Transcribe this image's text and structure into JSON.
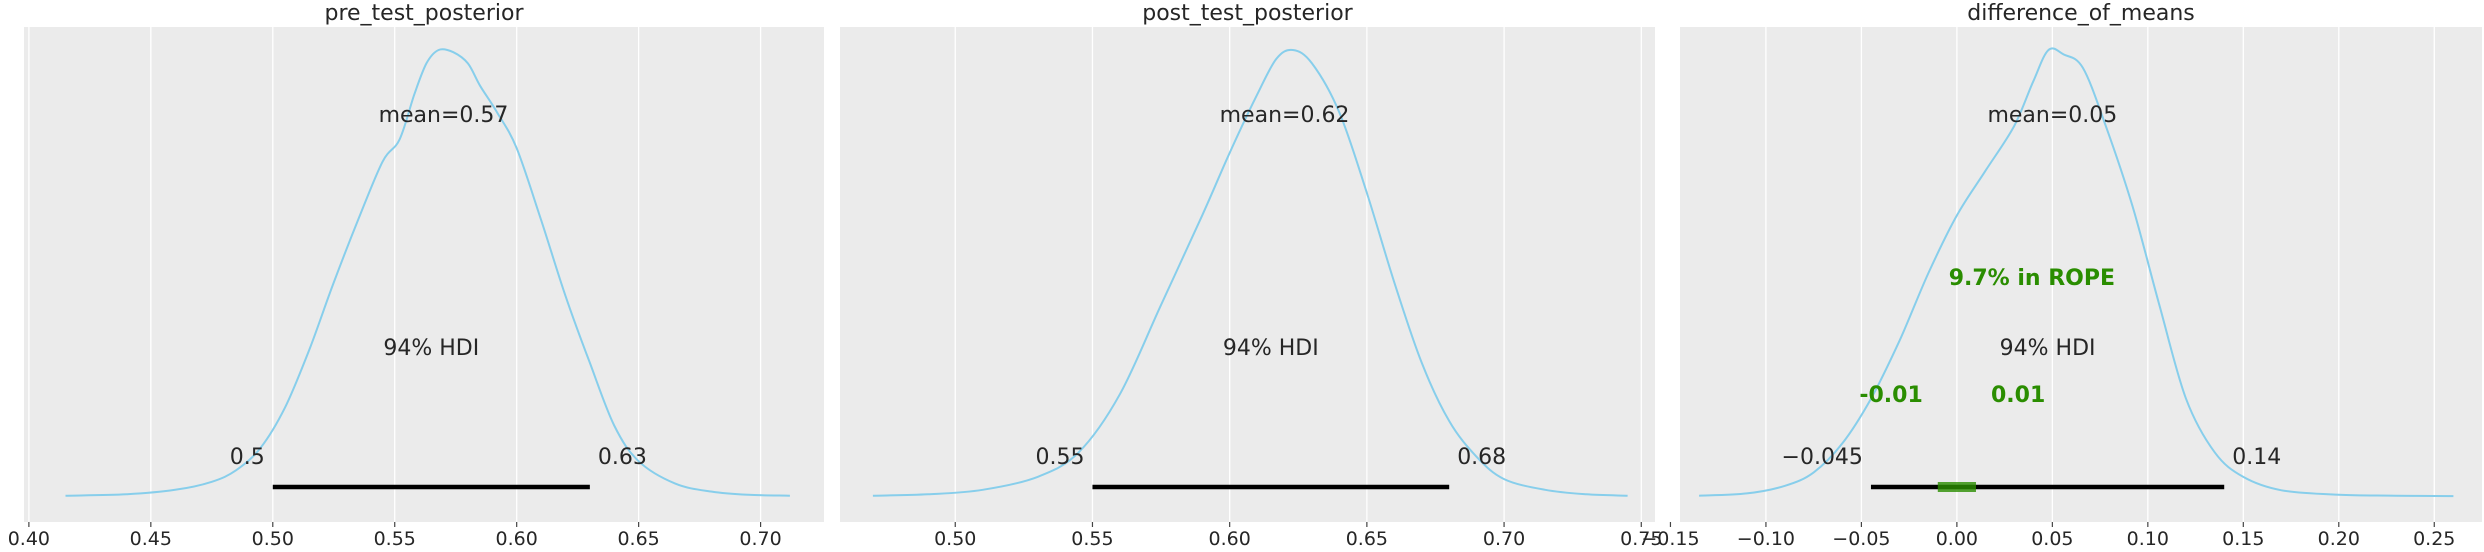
{
  "colors": {
    "panel_bg": "#ebebeb",
    "grid": "#ffffff",
    "density": "#87ceeb",
    "hdi_bar": "#000000",
    "rope": "#2a8d00"
  },
  "chart_data": [
    {
      "type": "area",
      "title": "pre_test_posterior",
      "xlim": [
        0.398,
        0.726
      ],
      "xticks": [
        0.4,
        0.45,
        0.5,
        0.55,
        0.6,
        0.65,
        0.7
      ],
      "xtick_labels": [
        "0.40",
        "0.45",
        "0.50",
        "0.55",
        "0.60",
        "0.65",
        "0.70"
      ],
      "grid": true,
      "density": {
        "x": [
          0.415,
          0.44,
          0.46,
          0.475,
          0.485,
          0.495,
          0.505,
          0.515,
          0.525,
          0.535,
          0.545,
          0.552,
          0.558,
          0.563,
          0.568,
          0.574,
          0.58,
          0.585,
          0.592,
          0.6,
          0.61,
          0.62,
          0.63,
          0.64,
          0.65,
          0.665,
          0.68,
          0.695,
          0.712
        ],
        "y": [
          0.003,
          0.006,
          0.016,
          0.034,
          0.06,
          0.11,
          0.2,
          0.33,
          0.48,
          0.62,
          0.75,
          0.8,
          0.9,
          0.97,
          1.0,
          0.995,
          0.97,
          0.92,
          0.86,
          0.78,
          0.62,
          0.45,
          0.3,
          0.16,
          0.08,
          0.03,
          0.012,
          0.005,
          0.003
        ]
      },
      "mean_label": "mean=0.57",
      "mean": 0.57,
      "hdi_label": "94% HDI",
      "hdi": [
        0.5,
        0.63
      ],
      "hdi_low_label": "0.5",
      "hdi_high_label": "0.63"
    },
    {
      "type": "area",
      "title": "post_test_posterior",
      "xlim": [
        0.458,
        0.755
      ],
      "xticks": [
        0.5,
        0.55,
        0.6,
        0.65,
        0.7,
        0.75
      ],
      "xtick_labels": [
        "0.50",
        "0.55",
        "0.60",
        "0.65",
        "0.70",
        "0.75"
      ],
      "grid": true,
      "density": {
        "x": [
          0.47,
          0.49,
          0.51,
          0.53,
          0.545,
          0.56,
          0.575,
          0.59,
          0.6,
          0.61,
          0.617,
          0.623,
          0.63,
          0.64,
          0.65,
          0.66,
          0.67,
          0.68,
          0.69,
          0.7,
          0.715,
          0.73,
          0.745
        ],
        "y": [
          0.003,
          0.006,
          0.016,
          0.045,
          0.1,
          0.23,
          0.43,
          0.63,
          0.77,
          0.9,
          0.98,
          1.0,
          0.97,
          0.86,
          0.68,
          0.48,
          0.3,
          0.17,
          0.09,
          0.04,
          0.016,
          0.006,
          0.003
        ]
      },
      "mean_label": "mean=0.62",
      "mean": 0.62,
      "hdi_label": "94% HDI",
      "hdi": [
        0.55,
        0.68
      ],
      "hdi_low_label": "0.55",
      "hdi_high_label": "0.68"
    },
    {
      "type": "area",
      "title": "difference_of_means",
      "xlim": [
        -0.145,
        0.275
      ],
      "xticks": [
        -0.15,
        -0.1,
        -0.05,
        0.0,
        0.05,
        0.1,
        0.15,
        0.2,
        0.25
      ],
      "xtick_labels": [
        "−0.15",
        "−0.10",
        "−0.05",
        "0.00",
        "0.05",
        "0.10",
        "0.15",
        "0.20",
        "0.25"
      ],
      "grid": true,
      "density": {
        "x": [
          -0.135,
          -0.11,
          -0.09,
          -0.075,
          -0.06,
          -0.045,
          -0.03,
          -0.015,
          0.0,
          0.015,
          0.03,
          0.04,
          0.048,
          0.056,
          0.066,
          0.078,
          0.092,
          0.106,
          0.12,
          0.135,
          0.15,
          0.17,
          0.2,
          0.23,
          0.26
        ],
        "y": [
          0.003,
          0.008,
          0.025,
          0.055,
          0.12,
          0.22,
          0.35,
          0.5,
          0.63,
          0.73,
          0.83,
          0.93,
          1.0,
          0.99,
          0.96,
          0.83,
          0.65,
          0.43,
          0.22,
          0.1,
          0.045,
          0.015,
          0.005,
          0.003,
          0.002
        ]
      },
      "mean_label": "mean=0.05",
      "mean": 0.05,
      "hdi_label": "94% HDI",
      "hdi": [
        -0.045,
        0.14
      ],
      "hdi_low_label": "−0.045",
      "hdi_high_label": "0.14",
      "rope": [
        -0.01,
        0.01
      ],
      "rope_label": "9.7% in ROPE",
      "rope_low_label": "-0.01",
      "rope_high_label": "0.01"
    }
  ]
}
